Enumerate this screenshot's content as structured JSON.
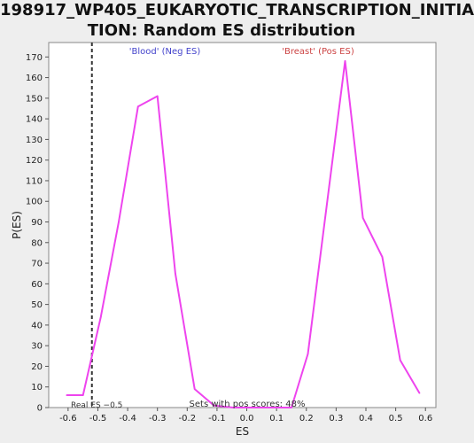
{
  "chart_data": {
    "type": "line",
    "title_lines": [
      "198917_WP405_EUKARYOTIC_TRANSCRIPTION_INITIA",
      "TION: Random ES distribution"
    ],
    "xlabel": "ES",
    "ylabel": "P(ES)",
    "xlim": [
      -0.665,
      0.635
    ],
    "ylim": [
      0,
      177
    ],
    "xticks": [
      -0.6,
      -0.5,
      -0.4,
      -0.3,
      -0.2,
      -0.1,
      0.0,
      0.1,
      0.2,
      0.3,
      0.4,
      0.5,
      0.6
    ],
    "xtick_labels": [
      "-0.6",
      "-0.5",
      "-0.4",
      "-0.3",
      "-0.2",
      "-0.1",
      "0.0",
      "0.1",
      "0.2",
      "0.3",
      "0.4",
      "0.5",
      "0.6"
    ],
    "yticks": [
      0,
      10,
      20,
      30,
      40,
      50,
      60,
      70,
      80,
      90,
      100,
      110,
      120,
      130,
      140,
      150,
      160,
      170
    ],
    "grid": false,
    "series": [
      {
        "color": "#ee44ee",
        "points": [
          {
            "x": -0.605,
            "y": 6
          },
          {
            "x": -0.55,
            "y": 6
          },
          {
            "x": -0.49,
            "y": 44
          },
          {
            "x": -0.43,
            "y": 90
          },
          {
            "x": -0.365,
            "y": 146
          },
          {
            "x": -0.3,
            "y": 151
          },
          {
            "x": -0.24,
            "y": 65
          },
          {
            "x": -0.175,
            "y": 9
          },
          {
            "x": -0.11,
            "y": 1
          },
          {
            "x": -0.045,
            "y": 0
          },
          {
            "x": 0.02,
            "y": 0
          },
          {
            "x": 0.085,
            "y": 0
          },
          {
            "x": 0.15,
            "y": 0
          },
          {
            "x": 0.205,
            "y": 26
          },
          {
            "x": 0.265,
            "y": 94
          },
          {
            "x": 0.33,
            "y": 168
          },
          {
            "x": 0.39,
            "y": 92
          },
          {
            "x": 0.455,
            "y": 73
          },
          {
            "x": 0.515,
            "y": 23
          },
          {
            "x": 0.58,
            "y": 7
          }
        ]
      }
    ],
    "reference_line": {
      "x": -0.52,
      "label": "Real ES −0.5",
      "color": "#333333"
    },
    "annotations": {
      "neg_label": "'Blood' (Neg ES)",
      "neg_color": "#4444cc",
      "pos_label": "'Breast' (Pos ES)",
      "pos_color": "#cc4444",
      "sets_label": "Sets with pos scores: 48%"
    }
  }
}
